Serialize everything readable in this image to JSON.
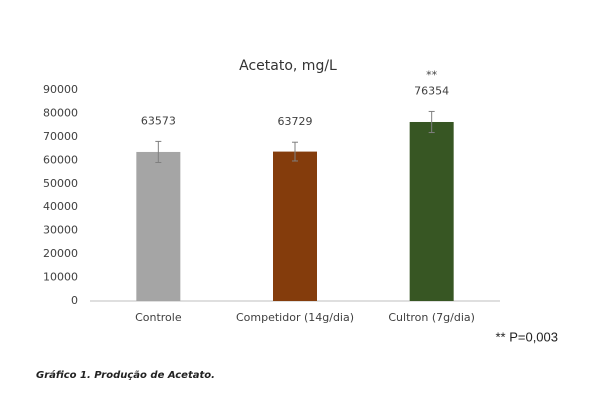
{
  "chart_data": {
    "type": "bar",
    "title": "Acetato, mg/L",
    "categories": [
      "Controle",
      "Competidor (14g/dia)",
      "Cultron (7g/dia)"
    ],
    "values": [
      63573,
      63729,
      76354
    ],
    "errors": [
      4500,
      4000,
      4500
    ],
    "colors": [
      "#a5a5a5",
      "#843c0c",
      "#375623"
    ],
    "ylim": [
      0,
      90000
    ],
    "yticks": [
      0,
      10000,
      20000,
      30000,
      40000,
      50000,
      60000,
      70000,
      80000,
      90000
    ],
    "annotations": [
      {
        "category": 2,
        "text": "**"
      }
    ],
    "footnote": "** P=0,003"
  },
  "caption": "Gráfico 1. Produção de Acetato."
}
